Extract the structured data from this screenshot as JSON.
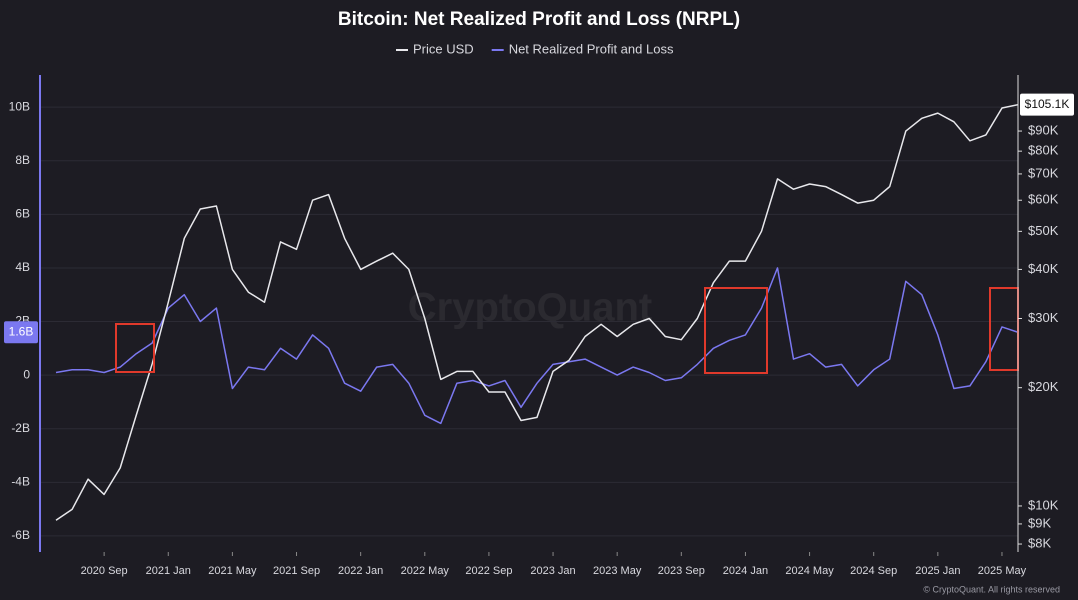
{
  "chart_data": {
    "type": "line",
    "title": "Bitcoin: Net Realized Profit and Loss (NRPL)",
    "watermark": "CryptoQuant",
    "copyright": "© CryptoQuant. All rights reserved",
    "x": [
      "2020-06",
      "2020-07",
      "2020-08",
      "2020-09",
      "2020-10",
      "2020-11",
      "2020-12",
      "2021-01",
      "2021-02",
      "2021-03",
      "2021-04",
      "2021-05",
      "2021-06",
      "2021-07",
      "2021-08",
      "2021-09",
      "2021-10",
      "2021-11",
      "2021-12",
      "2022-01",
      "2022-02",
      "2022-03",
      "2022-04",
      "2022-05",
      "2022-06",
      "2022-07",
      "2022-08",
      "2022-09",
      "2022-10",
      "2022-11",
      "2022-12",
      "2023-01",
      "2023-02",
      "2023-03",
      "2023-04",
      "2023-05",
      "2023-06",
      "2023-07",
      "2023-08",
      "2023-09",
      "2023-10",
      "2023-11",
      "2023-12",
      "2024-01",
      "2024-02",
      "2024-03",
      "2024-04",
      "2024-05",
      "2024-06",
      "2024-07",
      "2024-08",
      "2024-09",
      "2024-10",
      "2024-11",
      "2024-12",
      "2025-01",
      "2025-02",
      "2025-03",
      "2025-04",
      "2025-05",
      "2025-06"
    ],
    "xlim": [
      "2020-05",
      "2025-06"
    ],
    "xticks": [
      {
        "value": "2020-09",
        "label": "2020 Sep"
      },
      {
        "value": "2021-01",
        "label": "2021 Jan"
      },
      {
        "value": "2021-05",
        "label": "2021 May"
      },
      {
        "value": "2021-09",
        "label": "2021 Sep"
      },
      {
        "value": "2022-01",
        "label": "2022 Jan"
      },
      {
        "value": "2022-05",
        "label": "2022 May"
      },
      {
        "value": "2022-09",
        "label": "2022 Sep"
      },
      {
        "value": "2023-01",
        "label": "2023 Jan"
      },
      {
        "value": "2023-05",
        "label": "2023 May"
      },
      {
        "value": "2023-09",
        "label": "2023 Sep"
      },
      {
        "value": "2024-01",
        "label": "2024 Jan"
      },
      {
        "value": "2024-05",
        "label": "2024 May"
      },
      {
        "value": "2024-09",
        "label": "2024 Sep"
      },
      {
        "value": "2025-01",
        "label": "2025 Jan"
      },
      {
        "value": "2025-05",
        "label": "2025 May"
      }
    ],
    "ylim": [
      -6600000000,
      11200000000
    ],
    "yticks": [
      {
        "value": -6000000000,
        "label": "-6B"
      },
      {
        "value": -4000000000,
        "label": "-4B"
      },
      {
        "value": -2000000000,
        "label": "-2B"
      },
      0,
      {
        "value": 2000000000,
        "label": "2B"
      },
      {
        "value": 4000000000,
        "label": "4B"
      },
      {
        "value": 6000000000,
        "label": "6B"
      },
      {
        "value": 8000000000,
        "label": "8B"
      },
      {
        "value": 10000000000,
        "label": "10B"
      }
    ],
    "y2lim": [
      7635,
      125000
    ],
    "y2log": true,
    "y2ticks": [
      {
        "value": 8000,
        "label": "$8K"
      },
      {
        "value": 9000,
        "label": "$9K"
      },
      {
        "value": 10000,
        "label": "$10K"
      },
      {
        "value": 20000,
        "label": "$20K"
      },
      {
        "value": 30000,
        "label": "$30K"
      },
      {
        "value": 40000,
        "label": "$40K"
      },
      {
        "value": 50000,
        "label": "$50K"
      },
      {
        "value": 60000,
        "label": "$60K"
      },
      {
        "value": 70000,
        "label": "$70K"
      },
      {
        "value": 80000,
        "label": "$80K"
      },
      {
        "value": 90000,
        "label": "$90K"
      }
    ],
    "grid": true,
    "series": [
      {
        "name": "Price USD",
        "color": "#e8e8ec",
        "axis": "y2",
        "current_value_label": {
          "value": 105100,
          "label": "$105.1K"
        },
        "values": [
          9200,
          9800,
          11700,
          10700,
          12500,
          17000,
          23000,
          33000,
          48000,
          57000,
          58000,
          40000,
          35000,
          33000,
          47000,
          45000,
          60000,
          62000,
          48000,
          40000,
          42000,
          44000,
          40000,
          30000,
          21000,
          22000,
          22000,
          19500,
          19500,
          16500,
          16800,
          22000,
          23500,
          27000,
          29000,
          27000,
          29000,
          30000,
          27000,
          26500,
          30000,
          37000,
          42000,
          42000,
          50000,
          68000,
          64000,
          66000,
          65000,
          62000,
          59000,
          60000,
          65000,
          90000,
          97000,
          100000,
          95000,
          85000,
          88000,
          103000,
          105000
        ]
      },
      {
        "name": "Net Realized Profit and Loss",
        "color": "#7b78f0",
        "current_value_label": {
          "value": 1600000000,
          "label": "1.6B"
        },
        "values": [
          100000000,
          200000000,
          200000000,
          100000000,
          300000000,
          800000000,
          1200000000,
          2500000000,
          3000000000,
          2000000000,
          2500000000,
          -500000000,
          300000000,
          200000000,
          1000000000,
          600000000,
          1500000000,
          1000000000,
          -300000000,
          -600000000,
          300000000,
          400000000,
          -300000000,
          -1500000000,
          -1800000000,
          -300000000,
          -200000000,
          -400000000,
          -200000000,
          -1200000000,
          -300000000,
          400000000,
          500000000,
          600000000,
          300000000,
          0,
          300000000,
          100000000,
          -200000000,
          -100000000,
          400000000,
          1000000000,
          1300000000,
          1500000000,
          2500000000,
          4000000000,
          600000000,
          800000000,
          300000000,
          400000000,
          -400000000,
          200000000,
          600000000,
          3500000000,
          3000000000,
          1500000000,
          -500000000,
          -400000000,
          500000000,
          1800000000,
          1600000000
        ]
      }
    ]
  }
}
